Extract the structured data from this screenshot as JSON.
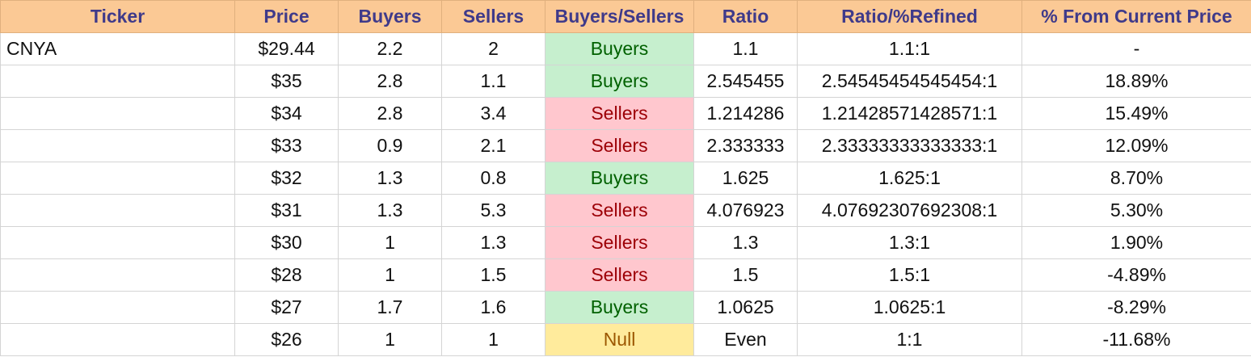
{
  "colors": {
    "header_bg": "#fbc995",
    "header_text": "#3f3a8a",
    "buyers_bg": "#c6efce",
    "buyers_text": "#006100",
    "sellers_bg": "#ffc7ce",
    "sellers_text": "#9c0006",
    "null_bg": "#ffeb9c",
    "null_text": "#9c5700",
    "grid": "#d4d4d4"
  },
  "headers": [
    "Ticker",
    "Price",
    "Buyers",
    "Sellers",
    "Buyers/Sellers",
    "Ratio",
    "Ratio/%Refined",
    "% From Current Price"
  ],
  "rows": [
    {
      "ticker": "CNYA",
      "price": "$29.44",
      "buyers": "2.2",
      "sellers": "2",
      "bs": "Buyers",
      "bs_type": "buyers",
      "ratio": "1.1",
      "refined": "1.1:1",
      "pct": "-"
    },
    {
      "ticker": "",
      "price": "$35",
      "buyers": "2.8",
      "sellers": "1.1",
      "bs": "Buyers",
      "bs_type": "buyers",
      "ratio": "2.545455",
      "refined": "2.54545454545454:1",
      "pct": "18.89%"
    },
    {
      "ticker": "",
      "price": "$34",
      "buyers": "2.8",
      "sellers": "3.4",
      "bs": "Sellers",
      "bs_type": "sellers",
      "ratio": "1.214286",
      "refined": "1.21428571428571:1",
      "pct": "15.49%"
    },
    {
      "ticker": "",
      "price": "$33",
      "buyers": "0.9",
      "sellers": "2.1",
      "bs": "Sellers",
      "bs_type": "sellers",
      "ratio": "2.333333",
      "refined": "2.33333333333333:1",
      "pct": "12.09%"
    },
    {
      "ticker": "",
      "price": "$32",
      "buyers": "1.3",
      "sellers": "0.8",
      "bs": "Buyers",
      "bs_type": "buyers",
      "ratio": "1.625",
      "refined": "1.625:1",
      "pct": "8.70%"
    },
    {
      "ticker": "",
      "price": "$31",
      "buyers": "1.3",
      "sellers": "5.3",
      "bs": "Sellers",
      "bs_type": "sellers",
      "ratio": "4.076923",
      "refined": "4.07692307692308:1",
      "pct": "5.30%"
    },
    {
      "ticker": "",
      "price": "$30",
      "buyers": "1",
      "sellers": "1.3",
      "bs": "Sellers",
      "bs_type": "sellers",
      "ratio": "1.3",
      "refined": "1.3:1",
      "pct": "1.90%"
    },
    {
      "ticker": "",
      "price": "$28",
      "buyers": "1",
      "sellers": "1.5",
      "bs": "Sellers",
      "bs_type": "sellers",
      "ratio": "1.5",
      "refined": "1.5:1",
      "pct": "-4.89%"
    },
    {
      "ticker": "",
      "price": "$27",
      "buyers": "1.7",
      "sellers": "1.6",
      "bs": "Buyers",
      "bs_type": "buyers",
      "ratio": "1.0625",
      "refined": "1.0625:1",
      "pct": "-8.29%"
    },
    {
      "ticker": "",
      "price": "$26",
      "buyers": "1",
      "sellers": "1",
      "bs": "Null",
      "bs_type": "null",
      "ratio": "Even",
      "refined": "1:1",
      "pct": "-11.68%"
    }
  ]
}
